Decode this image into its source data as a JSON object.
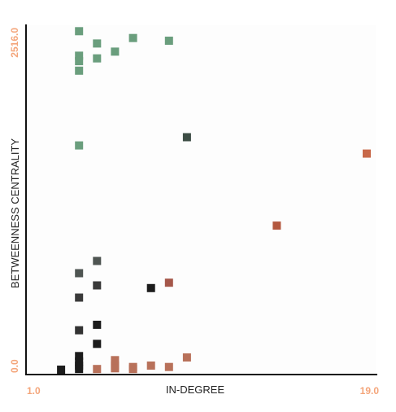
{
  "chart_data": {
    "type": "scatter",
    "title": "",
    "xlabel": "IN-DEGREE",
    "ylabel": "BETWEENNESS CENTRALITY",
    "xlim": [
      1.0,
      19.0
    ],
    "ylim": [
      0.0,
      2516.0
    ],
    "x_tick_labels": [
      "1.0",
      "19.0"
    ],
    "y_tick_labels": [
      "0.0",
      "2516.0"
    ],
    "grid": false,
    "legend": "none",
    "colors": {
      "tick_label": "#f4a57a",
      "plot_background": "#fdfdfd",
      "axis_line": "#111111"
    },
    "points": [
      {
        "x": 3.0,
        "y": 2490,
        "color": "#6a9e7d"
      },
      {
        "x": 6.0,
        "y": 2440,
        "color": "#6a9e7d"
      },
      {
        "x": 8.0,
        "y": 2420,
        "color": "#6a9e7d"
      },
      {
        "x": 4.0,
        "y": 2400,
        "color": "#6a9e7d"
      },
      {
        "x": 5.0,
        "y": 2340,
        "color": "#6a9e7d"
      },
      {
        "x": 3.0,
        "y": 2310,
        "color": "#6a9e7d"
      },
      {
        "x": 4.0,
        "y": 2290,
        "color": "#6a9e7d"
      },
      {
        "x": 3.0,
        "y": 2270,
        "color": "#6a9e7d"
      },
      {
        "x": 3.0,
        "y": 2200,
        "color": "#6a9e7d"
      },
      {
        "x": 3.0,
        "y": 1650,
        "color": "#6a9e7d"
      },
      {
        "x": 9.0,
        "y": 1710,
        "color": "#3d4d45"
      },
      {
        "x": 19.0,
        "y": 1590,
        "color": "#c8694a"
      },
      {
        "x": 14.0,
        "y": 1060,
        "color": "#b3583f"
      },
      {
        "x": 4.0,
        "y": 800,
        "color": "#4f5552"
      },
      {
        "x": 3.0,
        "y": 710,
        "color": "#4f5552"
      },
      {
        "x": 4.0,
        "y": 620,
        "color": "#3a3a3a"
      },
      {
        "x": 8.0,
        "y": 640,
        "color": "#a5574a"
      },
      {
        "x": 7.0,
        "y": 600,
        "color": "#1c1c1c"
      },
      {
        "x": 3.0,
        "y": 530,
        "color": "#3a3a3a"
      },
      {
        "x": 3.0,
        "y": 290,
        "color": "#333333"
      },
      {
        "x": 4.0,
        "y": 330,
        "color": "#1c1c1c"
      },
      {
        "x": 4.0,
        "y": 190,
        "color": "#1c1c1c"
      },
      {
        "x": 3.0,
        "y": 100,
        "color": "#1c1c1c"
      },
      {
        "x": 3.0,
        "y": 60,
        "color": "#1c1c1c"
      },
      {
        "x": 3.0,
        "y": 30,
        "color": "#1c1c1c"
      },
      {
        "x": 3.0,
        "y": 5,
        "color": "#1c1c1c"
      },
      {
        "x": 2.0,
        "y": 0,
        "color": "#1c1c1c"
      },
      {
        "x": 9.0,
        "y": 90,
        "color": "#b8715a"
      },
      {
        "x": 5.0,
        "y": 70,
        "color": "#b8715a"
      },
      {
        "x": 5.0,
        "y": 30,
        "color": "#b8715a"
      },
      {
        "x": 7.0,
        "y": 30,
        "color": "#b8715a"
      },
      {
        "x": 6.0,
        "y": 20,
        "color": "#b8715a"
      },
      {
        "x": 8.0,
        "y": 20,
        "color": "#b8715a"
      },
      {
        "x": 5.0,
        "y": 10,
        "color": "#b8715a"
      },
      {
        "x": 6.0,
        "y": 5,
        "color": "#b8715a"
      },
      {
        "x": 4.0,
        "y": 5,
        "color": "#b8715a"
      }
    ]
  }
}
